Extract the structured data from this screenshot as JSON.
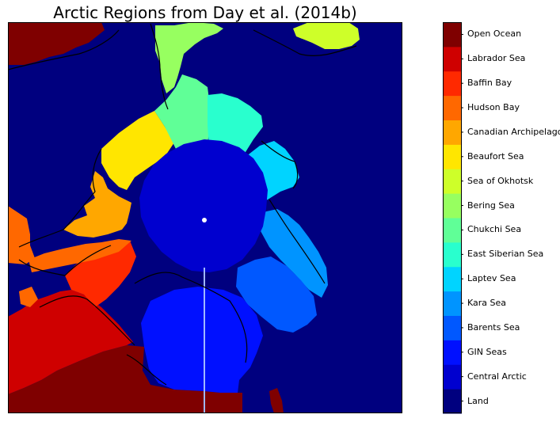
{
  "title": "Arctic Regions from Day et al. (2014b)",
  "regions": [
    {
      "name": "Land",
      "color": "#00007f"
    },
    {
      "name": "Central Arctic",
      "color": "#0000cf"
    },
    {
      "name": "GIN Seas",
      "color": "#0010ff"
    },
    {
      "name": "Barents Sea",
      "color": "#0058ff"
    },
    {
      "name": "Kara Sea",
      "color": "#0094ff"
    },
    {
      "name": "Laptev Sea",
      "color": "#00d4ff"
    },
    {
      "name": "East Siberian Sea",
      "color": "#29ffce"
    },
    {
      "name": "Chukchi Sea",
      "color": "#60ff97"
    },
    {
      "name": "Bering Sea",
      "color": "#97ff60"
    },
    {
      "name": "Sea of Okhotsk",
      "color": "#ceff29"
    },
    {
      "name": "Beaufort Sea",
      "color": "#ffe600"
    },
    {
      "name": "Canadian Archipelago",
      "color": "#ffa700"
    },
    {
      "name": "Hudson Bay",
      "color": "#ff6800"
    },
    {
      "name": "Baffin Bay",
      "color": "#ff2900"
    },
    {
      "name": "Labrador Sea",
      "color": "#cf0000"
    },
    {
      "name": "Open Ocean",
      "color": "#7f0000"
    }
  ]
}
